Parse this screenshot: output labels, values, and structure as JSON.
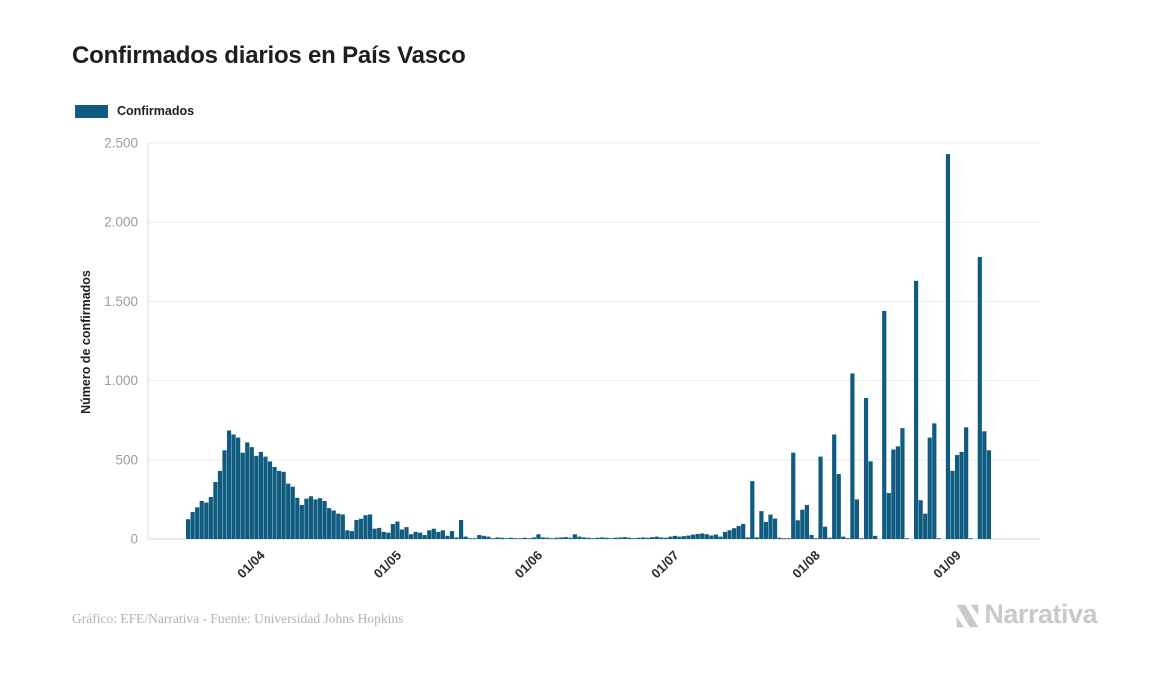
{
  "page": {
    "title": "Confirmados diarios en País Vasco",
    "credit": "Gráfico: EFE/Narrativa - Fuente: Universidad Johns Hopkins",
    "brand": "Narrativa"
  },
  "legend": {
    "label": "Confirmados",
    "color": "#0f5c80"
  },
  "chart_data": {
    "type": "bar",
    "title": "Confirmados diarios en País Vasco",
    "series_name": "Confirmados",
    "xlabel": "",
    "ylabel": "Número de confirmados",
    "bar_color": "#0f5c80",
    "grid": "horizontal",
    "legend_position": "top-left",
    "start_date": "2020-03-15",
    "end_date": "2020-09-07",
    "ylim": [
      0,
      2500
    ],
    "y_ticks": [
      {
        "value": 0,
        "label": "0"
      },
      {
        "value": 500,
        "label": "500"
      },
      {
        "value": 1000,
        "label": "1.000"
      },
      {
        "value": 1500,
        "label": "1.500"
      },
      {
        "value": 2000,
        "label": "2.000"
      },
      {
        "value": 2500,
        "label": "2.500"
      }
    ],
    "x_ticks": [
      {
        "label": "01/04",
        "index": 17
      },
      {
        "label": "01/05",
        "index": 47
      },
      {
        "label": "01/06",
        "index": 78
      },
      {
        "label": "01/07",
        "index": 108
      },
      {
        "label": "01/08",
        "index": 139
      },
      {
        "label": "01/09",
        "index": 170
      }
    ],
    "values": [
      125,
      170,
      200,
      240,
      230,
      265,
      360,
      430,
      560,
      685,
      660,
      640,
      545,
      610,
      580,
      525,
      550,
      520,
      490,
      455,
      430,
      424,
      350,
      330,
      260,
      215,
      255,
      270,
      250,
      258,
      240,
      195,
      180,
      160,
      155,
      55,
      50,
      120,
      128,
      150,
      155,
      65,
      70,
      45,
      40,
      95,
      110,
      60,
      75,
      30,
      45,
      40,
      25,
      55,
      65,
      45,
      55,
      20,
      50,
      10,
      120,
      15,
      5,
      3,
      25,
      20,
      15,
      5,
      10,
      8,
      5,
      8,
      5,
      3,
      8,
      5,
      10,
      30,
      10,
      8,
      5,
      8,
      10,
      12,
      8,
      30,
      15,
      10,
      8,
      5,
      8,
      10,
      8,
      5,
      8,
      10,
      12,
      8,
      5,
      8,
      10,
      8,
      12,
      15,
      10,
      8,
      15,
      20,
      15,
      18,
      22,
      28,
      32,
      35,
      30,
      22,
      28,
      15,
      45,
      55,
      68,
      82,
      95,
      10,
      365,
      10,
      176,
      108,
      154,
      129,
      8,
      5,
      5,
      545,
      118,
      185,
      215,
      25,
      5,
      520,
      78,
      8,
      660,
      410,
      15,
      5,
      1045,
      250,
      5,
      890,
      490,
      20,
      0,
      1440,
      290,
      565,
      585,
      700,
      5,
      0,
      1630,
      245,
      160,
      640,
      730,
      5,
      0,
      2430,
      430,
      530,
      550,
      705,
      5,
      0,
      1780,
      680,
      560
    ]
  }
}
